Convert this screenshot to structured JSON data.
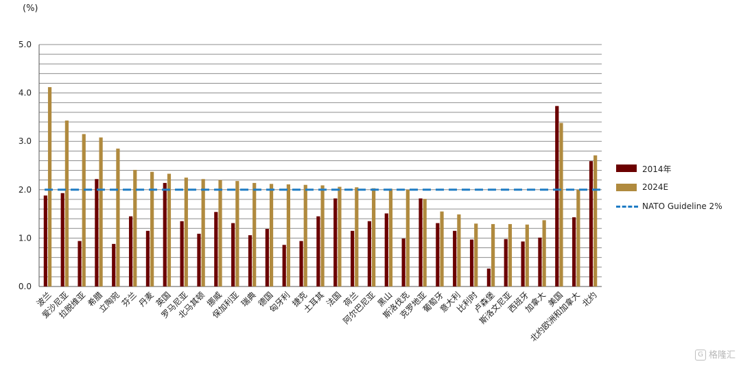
{
  "unit_label": "(%)",
  "chart_data": {
    "type": "bar",
    "categories": [
      "波兰",
      "爱沙尼亚",
      "拉脱维亚",
      "希腊",
      "立陶宛",
      "芬兰",
      "丹麦",
      "英国",
      "罗马尼亚",
      "北马其顿",
      "挪威",
      "保加利亚",
      "瑞典",
      "德国",
      "匈牙利",
      "捷克",
      "土耳其",
      "法国",
      "荷兰",
      "阿尔巴尼亚",
      "黑山",
      "斯洛伐克",
      "克罗地亚",
      "葡萄牙",
      "意大利",
      "比利时",
      "卢森堡",
      "斯洛文尼亚",
      "西班牙",
      "加拿大",
      "美国",
      "北约欧洲和加拿大",
      "北约"
    ],
    "series": [
      {
        "name": "2014年",
        "color": "#6b0000",
        "values": [
          1.88,
          1.93,
          0.94,
          2.22,
          0.88,
          1.45,
          1.15,
          2.14,
          1.35,
          1.09,
          1.54,
          1.31,
          1.06,
          1.19,
          0.86,
          0.94,
          1.45,
          1.82,
          1.15,
          1.35,
          1.51,
          0.99,
          1.82,
          1.31,
          1.15,
          0.97,
          0.37,
          0.98,
          0.93,
          1.01,
          3.73,
          1.43,
          2.59
        ]
      },
      {
        "name": "2024E",
        "color": "#b08a3e",
        "values": [
          4.12,
          3.43,
          3.15,
          3.08,
          2.85,
          2.41,
          2.37,
          2.33,
          2.25,
          2.22,
          2.2,
          2.18,
          2.14,
          2.12,
          2.11,
          2.1,
          2.09,
          2.06,
          2.05,
          2.03,
          2.02,
          2.0,
          1.81,
          1.55,
          1.49,
          1.3,
          1.29,
          1.29,
          1.28,
          1.37,
          3.38,
          2.0,
          2.71
        ]
      }
    ],
    "guideline": {
      "name": "NATO Guideline 2%",
      "value": 2.0,
      "color": "#1f7cc4"
    },
    "ylim": [
      0,
      5
    ],
    "yticks": [
      "0.0",
      "1.0",
      "2.0",
      "3.0",
      "4.0",
      "5.0"
    ],
    "grid": true,
    "legend_position": "right"
  },
  "watermark": {
    "icon_text": "G",
    "label": "格隆汇"
  }
}
